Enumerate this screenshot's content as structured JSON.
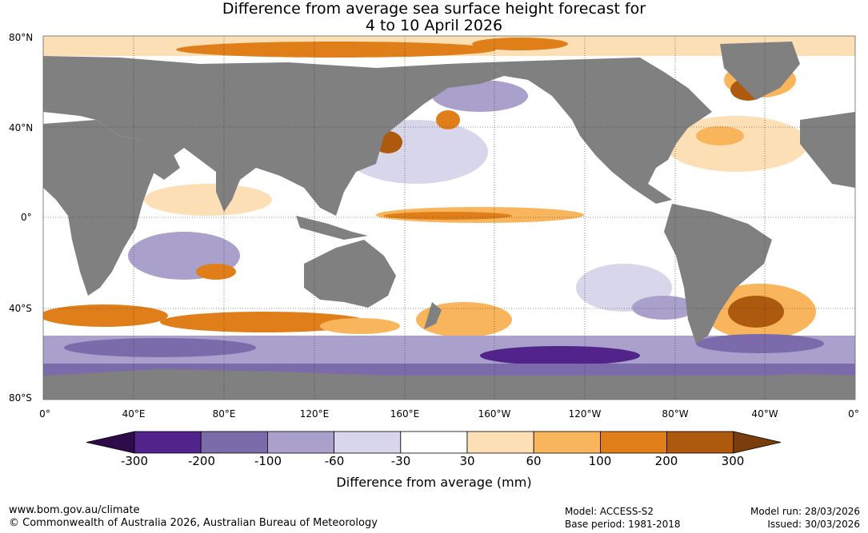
{
  "title": {
    "line1": "Difference from average sea surface height forecast for",
    "line2": "4 to 10 April 2026"
  },
  "axes": {
    "lat_labels": [
      "80°N",
      "40°N",
      "0°",
      "40°S",
      "80°S"
    ],
    "lon_labels": [
      "0°",
      "40°E",
      "80°E",
      "120°E",
      "160°E",
      "160°W",
      "120°W",
      "80°W",
      "40°W",
      "0°"
    ],
    "lat_range": [
      -80,
      80
    ],
    "lon_range": [
      0,
      360
    ],
    "grid": true
  },
  "colorbar": {
    "title": "Difference from average (mm)",
    "tick_labels": [
      "-300",
      "-200",
      "-100",
      "-60",
      "-30",
      "30",
      "60",
      "100",
      "200",
      "300"
    ],
    "colors": [
      "#2e0b4b",
      "#52238a",
      "#7b6bab",
      "#a9a1cc",
      "#d7d6ea",
      "#ffffff",
      "#fddfb6",
      "#f9b55c",
      "#e07f1a",
      "#ad5a0f",
      "#7a3d0c"
    ]
  },
  "colors": {
    "land": "#808080",
    "ocean_neutral": "#ffffff"
  },
  "footer": {
    "website": "www.bom.gov.au/climate",
    "copyright": "© Commonwealth of Australia 2026, Australian Bureau of Meteorology",
    "model": "Model: ACCESS-S2",
    "base_period": "Base period: 1981-2018",
    "model_run": "Model run: 28/03/2026",
    "issued": "Issued: 30/03/2026"
  }
}
